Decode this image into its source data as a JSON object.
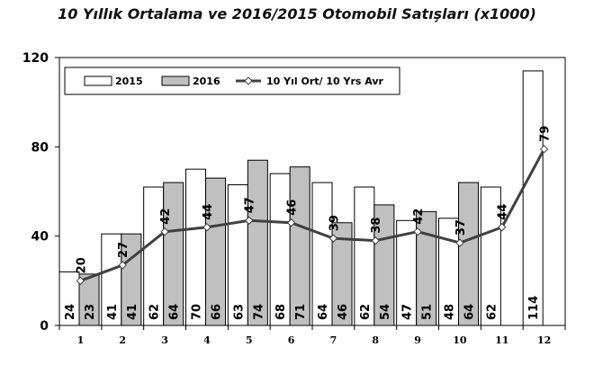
{
  "chart_data": {
    "type": "bar",
    "title": "10 Yıllık Ortalama ve 2016/2015 Otomobil Satışları (x1000)",
    "categories": [
      "1",
      "2",
      "3",
      "4",
      "5",
      "6",
      "7",
      "8",
      "9",
      "10",
      "11",
      "12"
    ],
    "ylim": [
      0,
      120
    ],
    "yticks": [
      "0",
      "40",
      "80",
      "120"
    ],
    "grid": false,
    "legend_position": "top-left",
    "series": [
      {
        "name": "2015",
        "type": "bar",
        "color": "#ffffff",
        "values": [
          24,
          41,
          62,
          70,
          63,
          68,
          64,
          62,
          47,
          48,
          62,
          114
        ]
      },
      {
        "name": "2016",
        "type": "bar",
        "color": "#c0c0c0",
        "values": [
          23,
          41,
          64,
          66,
          74,
          71,
          46,
          54,
          51,
          64,
          null,
          null
        ]
      },
      {
        "name": "10 Yıl Ort/ 10 Yrs Avr",
        "type": "line",
        "color": "#404040",
        "values": [
          20,
          27,
          42,
          44,
          47,
          46,
          39,
          38,
          42,
          37,
          44,
          79
        ]
      }
    ]
  }
}
